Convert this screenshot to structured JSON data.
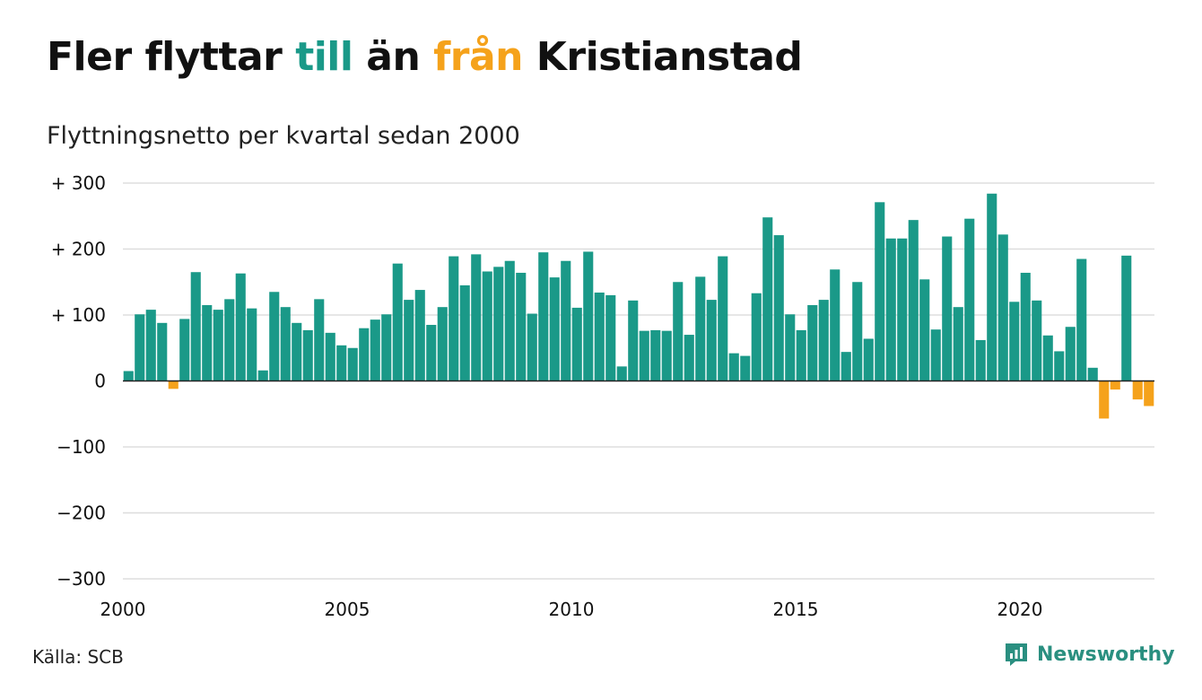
{
  "title": {
    "part1": "Fler flyttar ",
    "part2": "till",
    "part3": " än ",
    "part4": "från",
    "part5": " Kristianstad"
  },
  "subtitle": "Flyttningsnetto per kvartal sedan 2000",
  "source": "Källa: SCB",
  "brand": {
    "name": "Newsworthy",
    "icon": "newsworthy-logo-icon"
  },
  "colors": {
    "positive": "#1a9988",
    "negative": "#f5a21b",
    "title_till": "#1a9988",
    "title_fran": "#f5a21b",
    "grid": "#dddddd",
    "zero": "#222222",
    "brand": "#2a8f80"
  },
  "chart_data": {
    "type": "bar",
    "title": "Fler flyttar till än från Kristianstad",
    "subtitle": "Flyttningsnetto per kvartal sedan 2000",
    "xlabel": "",
    "ylabel": "",
    "ylim": [
      -300,
      300
    ],
    "yticks": [
      300,
      200,
      100,
      0,
      -100,
      -200,
      -300
    ],
    "ytick_labels": [
      "+ 300",
      "+ 200",
      "+ 100",
      "0",
      "−100",
      "−200",
      "−300"
    ],
    "xticks": [
      2000,
      2005,
      2010,
      2015,
      2020
    ],
    "xtick_labels": [
      "2000",
      "2005",
      "2010",
      "2015",
      "2020"
    ],
    "grid": true,
    "start_year": 2000,
    "periods_per_year": 4,
    "values": [
      15,
      101,
      108,
      88,
      -12,
      94,
      165,
      115,
      108,
      124,
      163,
      110,
      16,
      135,
      112,
      88,
      77,
      124,
      73,
      54,
      50,
      80,
      93,
      101,
      178,
      123,
      138,
      85,
      112,
      189,
      145,
      192,
      166,
      173,
      182,
      164,
      102,
      195,
      157,
      182,
      111,
      196,
      134,
      130,
      22,
      122,
      76,
      77,
      76,
      150,
      70,
      158,
      123,
      189,
      42,
      38,
      133,
      248,
      221,
      101,
      77,
      115,
      123,
      169,
      44,
      150,
      64,
      271,
      216,
      216,
      244,
      154,
      78,
      219,
      112,
      246,
      62,
      284,
      222,
      120,
      164,
      122,
      69,
      45,
      82,
      185,
      20,
      -57,
      -13,
      190,
      -28,
      -38
    ]
  }
}
